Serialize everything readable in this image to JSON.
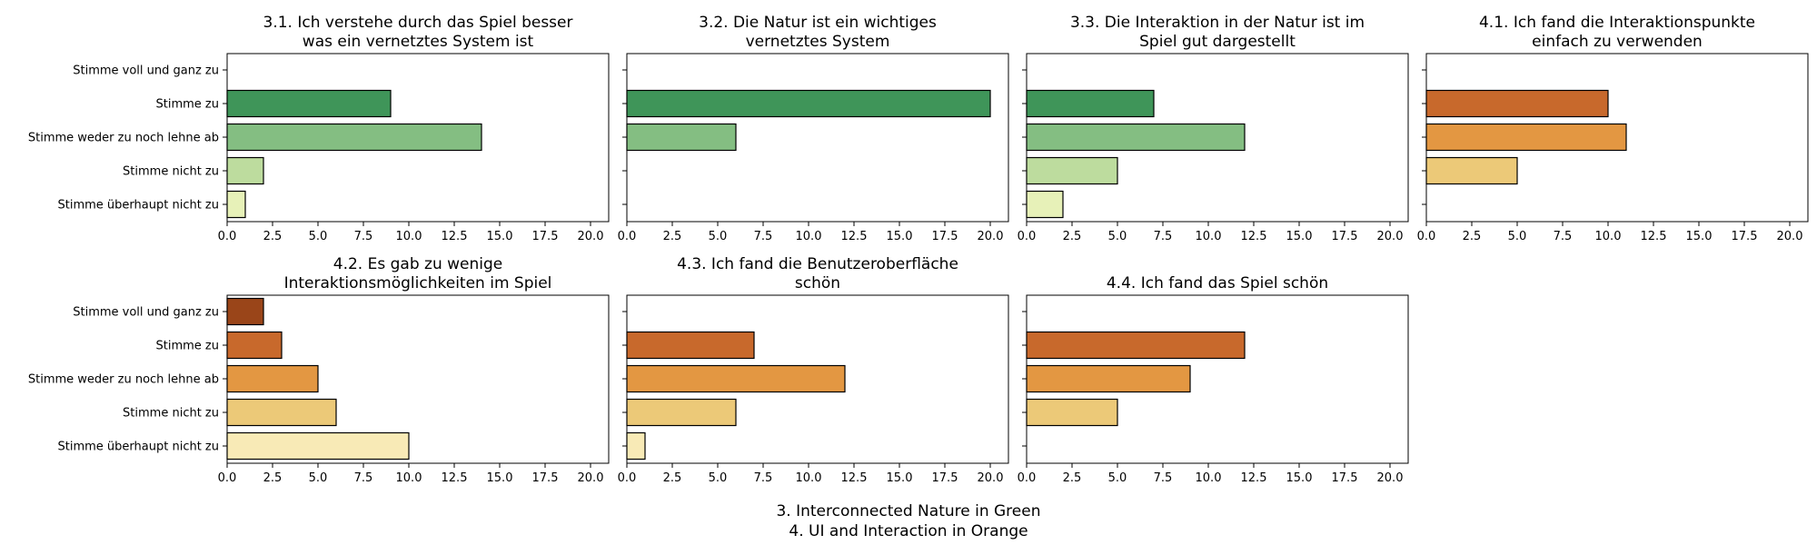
{
  "figure": {
    "caption_lines": [
      "3. Interconnected Nature in Green",
      "4. UI and Interaction in Orange"
    ]
  },
  "chart_data": [
    {
      "type": "bar",
      "orientation": "horizontal",
      "title_lines": [
        "3.1. Ich verstehe durch das Spiel besser",
        "was ein vernetztes System ist"
      ],
      "categories": [
        "Stimme voll und ganz zu",
        "Stimme zu",
        "Stimme weder zu noch lehne ab",
        "Stimme nicht zu",
        "Stimme überhaupt nicht zu"
      ],
      "values": [
        0,
        9,
        14,
        2,
        1
      ],
      "colors": [
        "#1e7a43",
        "#3f9559",
        "#84be82",
        "#bddc9e",
        "#e7f1b8"
      ],
      "xlim": [
        0,
        21
      ],
      "xticks": [
        0,
        2.5,
        5,
        7.5,
        10,
        12.5,
        15,
        17.5,
        20
      ],
      "xtick_labels": [
        "0.0",
        "2.5",
        "5.0",
        "7.5",
        "10.0",
        "12.5",
        "15.0",
        "17.5",
        "20.0"
      ],
      "show_category_labels": true,
      "grid": false
    },
    {
      "type": "bar",
      "orientation": "horizontal",
      "title_lines": [
        "3.2. Die Natur ist ein wichtiges",
        "vernetztes System"
      ],
      "categories": [
        "Stimme voll und ganz zu",
        "Stimme zu",
        "Stimme weder zu noch lehne ab",
        "Stimme nicht zu",
        "Stimme überhaupt nicht zu"
      ],
      "values": [
        0,
        20,
        6,
        0,
        0
      ],
      "colors": [
        "#1e7a43",
        "#3f9559",
        "#84be82",
        "#bddc9e",
        "#e7f1b8"
      ],
      "xlim": [
        0,
        21
      ],
      "xticks": [
        0,
        2.5,
        5,
        7.5,
        10,
        12.5,
        15,
        17.5,
        20
      ],
      "xtick_labels": [
        "0.0",
        "2.5",
        "5.0",
        "7.5",
        "10.0",
        "12.5",
        "15.0",
        "17.5",
        "20.0"
      ],
      "show_category_labels": false,
      "grid": false
    },
    {
      "type": "bar",
      "orientation": "horizontal",
      "title_lines": [
        "3.3. Die Interaktion in der Natur ist im",
        "Spiel gut dargestellt"
      ],
      "categories": [
        "Stimme voll und ganz zu",
        "Stimme zu",
        "Stimme weder zu noch lehne ab",
        "Stimme nicht zu",
        "Stimme überhaupt nicht zu"
      ],
      "values": [
        0,
        7,
        12,
        5,
        2
      ],
      "colors": [
        "#1e7a43",
        "#3f9559",
        "#84be82",
        "#bddc9e",
        "#e7f1b8"
      ],
      "xlim": [
        0,
        21
      ],
      "xticks": [
        0,
        2.5,
        5,
        7.5,
        10,
        12.5,
        15,
        17.5,
        20
      ],
      "xtick_labels": [
        "0.0",
        "2.5",
        "5.0",
        "7.5",
        "10.0",
        "12.5",
        "15.0",
        "17.5",
        "20.0"
      ],
      "show_category_labels": false,
      "grid": false
    },
    {
      "type": "bar",
      "orientation": "horizontal",
      "title_lines": [
        "4.1. Ich fand die Interaktionspunkte",
        "einfach zu verwenden"
      ],
      "categories": [
        "Stimme voll und ganz zu",
        "Stimme zu",
        "Stimme weder zu noch lehne ab",
        "Stimme nicht zu",
        "Stimme überhaupt nicht zu"
      ],
      "values": [
        0,
        10,
        11,
        5,
        0
      ],
      "colors": [
        "#9a4519",
        "#c8692c",
        "#e39742",
        "#ecc978",
        "#f8eab6"
      ],
      "xlim": [
        0,
        21
      ],
      "xticks": [
        0,
        2.5,
        5,
        7.5,
        10,
        12.5,
        15,
        17.5,
        20
      ],
      "xtick_labels": [
        "0.0",
        "2.5",
        "5.0",
        "7.5",
        "10.0",
        "12.5",
        "15.0",
        "17.5",
        "20.0"
      ],
      "show_category_labels": false,
      "grid": false
    },
    {
      "type": "bar",
      "orientation": "horizontal",
      "title_lines": [
        "4.2. Es gab zu wenige",
        "Interaktionsmöglichkeiten im Spiel"
      ],
      "categories": [
        "Stimme voll und ganz zu",
        "Stimme zu",
        "Stimme weder zu noch lehne ab",
        "Stimme nicht zu",
        "Stimme überhaupt nicht zu"
      ],
      "values": [
        2,
        3,
        5,
        6,
        10
      ],
      "colors": [
        "#9a4519",
        "#c8692c",
        "#e39742",
        "#ecc978",
        "#f8eab6"
      ],
      "xlim": [
        0,
        21
      ],
      "xticks": [
        0,
        2.5,
        5,
        7.5,
        10,
        12.5,
        15,
        17.5,
        20
      ],
      "xtick_labels": [
        "0.0",
        "2.5",
        "5.0",
        "7.5",
        "10.0",
        "12.5",
        "15.0",
        "17.5",
        "20.0"
      ],
      "show_category_labels": true,
      "grid": false
    },
    {
      "type": "bar",
      "orientation": "horizontal",
      "title_lines": [
        "4.3. Ich fand die Benutzeroberfläche",
        "schön"
      ],
      "categories": [
        "Stimme voll und ganz zu",
        "Stimme zu",
        "Stimme weder zu noch lehne ab",
        "Stimme nicht zu",
        "Stimme überhaupt nicht zu"
      ],
      "values": [
        0,
        7,
        12,
        6,
        1
      ],
      "colors": [
        "#9a4519",
        "#c8692c",
        "#e39742",
        "#ecc978",
        "#f8eab6"
      ],
      "xlim": [
        0,
        21
      ],
      "xticks": [
        0,
        2.5,
        5,
        7.5,
        10,
        12.5,
        15,
        17.5,
        20
      ],
      "xtick_labels": [
        "0.0",
        "2.5",
        "5.0",
        "7.5",
        "10.0",
        "12.5",
        "15.0",
        "17.5",
        "20.0"
      ],
      "show_category_labels": false,
      "grid": false
    },
    {
      "type": "bar",
      "orientation": "horizontal",
      "title_lines": [
        "4.4. Ich fand das Spiel schön"
      ],
      "categories": [
        "Stimme voll und ganz zu",
        "Stimme zu",
        "Stimme weder zu noch lehne ab",
        "Stimme nicht zu",
        "Stimme überhaupt nicht zu"
      ],
      "values": [
        0,
        12,
        9,
        5,
        0
      ],
      "colors": [
        "#9a4519",
        "#c8692c",
        "#e39742",
        "#ecc978",
        "#f8eab6"
      ],
      "xlim": [
        0,
        21
      ],
      "xticks": [
        0,
        2.5,
        5,
        7.5,
        10,
        12.5,
        15,
        17.5,
        20
      ],
      "xtick_labels": [
        "0.0",
        "2.5",
        "5.0",
        "7.5",
        "10.0",
        "12.5",
        "15.0",
        "17.5",
        "20.0"
      ],
      "show_category_labels": false,
      "grid": false
    }
  ]
}
